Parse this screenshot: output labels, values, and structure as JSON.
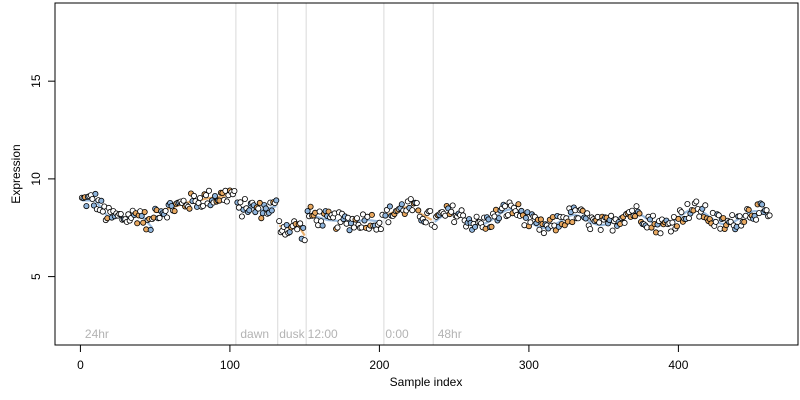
{
  "chart_data": {
    "type": "scatter",
    "title": "",
    "xlabel": "Sample index",
    "ylabel": "Expression",
    "xlim": [
      -17,
      480
    ],
    "ylim": [
      1.5,
      19
    ],
    "xticks": [
      0,
      100,
      200,
      300,
      400
    ],
    "yticks": [
      5,
      10,
      15
    ],
    "grid": false,
    "legend": "none",
    "colors": {
      "point_edge": "#000000",
      "point_fill_default": "#ffffff",
      "orange": "#e8a860",
      "blue": "#8eb4dc",
      "divider": "#d9d9d9",
      "label": "#b3b3b3"
    },
    "phase_lines": [
      104,
      132,
      151,
      203,
      236
    ],
    "phase_labels": [
      {
        "text": "24hr",
        "x": 3
      },
      {
        "text": "dawn",
        "x": 107
      },
      {
        "text": "dusk",
        "x": 133
      },
      {
        "text": "12:00",
        "x": 152
      },
      {
        "text": "0:00",
        "x": 204
      },
      {
        "text": "48hr",
        "x": 239
      }
    ],
    "segments": [
      {
        "x_start": 1,
        "x_end": 48,
        "knots": [
          [
            1,
            8.9
          ],
          [
            10,
            8.9
          ],
          [
            18,
            8.1
          ],
          [
            30,
            8.0
          ],
          [
            40,
            8.2
          ],
          [
            48,
            7.5
          ]
        ]
      },
      {
        "x_start": 49,
        "x_end": 103,
        "knots": [
          [
            49,
            8.3
          ],
          [
            60,
            8.5
          ],
          [
            72,
            8.8
          ],
          [
            85,
            9.0
          ],
          [
            95,
            9.1
          ],
          [
            103,
            9.3
          ]
        ]
      },
      {
        "x_start": 105,
        "x_end": 131,
        "knots": [
          [
            105,
            8.4
          ],
          [
            112,
            8.6
          ],
          [
            120,
            8.4
          ],
          [
            126,
            8.5
          ],
          [
            131,
            8.6
          ]
        ]
      },
      {
        "x_start": 133,
        "x_end": 150,
        "knots": [
          [
            133,
            7.6
          ],
          [
            140,
            7.5
          ],
          [
            146,
            7.6
          ],
          [
            150,
            7.1
          ]
        ]
      },
      {
        "x_start": 152,
        "x_end": 202,
        "knots": [
          [
            152,
            8.2
          ],
          [
            165,
            7.9
          ],
          [
            180,
            7.8
          ],
          [
            192,
            7.9
          ],
          [
            202,
            7.8
          ]
        ]
      },
      {
        "x_start": 204,
        "x_end": 235,
        "knots": [
          [
            204,
            8.1
          ],
          [
            212,
            8.4
          ],
          [
            220,
            8.6
          ],
          [
            228,
            8.2
          ],
          [
            235,
            7.9
          ]
        ]
      },
      {
        "x_start": 237,
        "x_end": 461,
        "knots": [
          [
            237,
            7.8
          ],
          [
            260,
            8.0
          ],
          [
            290,
            8.1
          ],
          [
            320,
            7.7
          ],
          [
            350,
            8.0
          ],
          [
            380,
            7.9
          ],
          [
            410,
            8.1
          ],
          [
            440,
            8.0
          ],
          [
            461,
            8.0
          ]
        ]
      }
    ]
  }
}
